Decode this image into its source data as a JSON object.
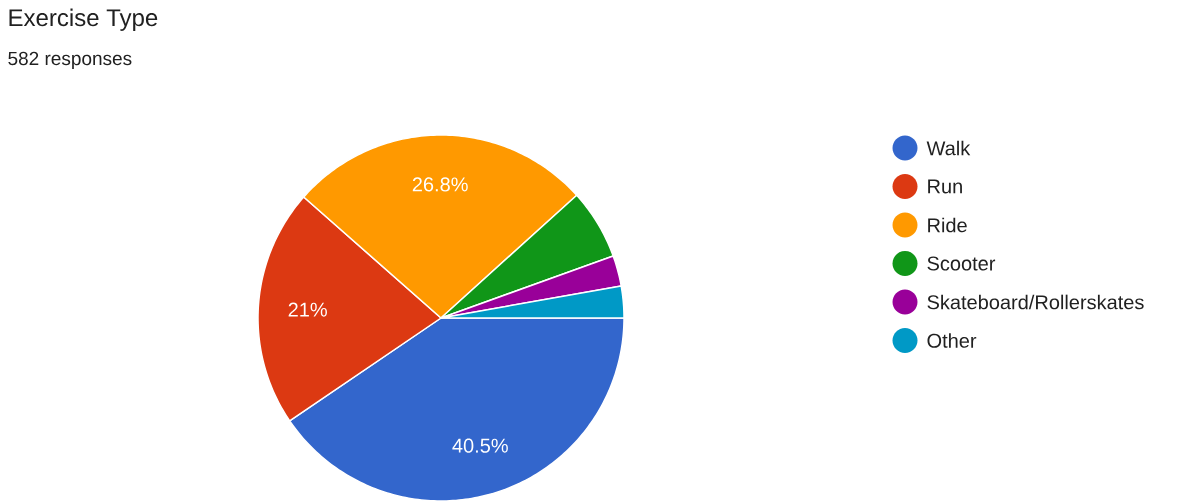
{
  "chart_data": {
    "type": "pie",
    "title": "Exercise Type",
    "subtitle": "582 responses",
    "categories": [
      "Walk",
      "Run",
      "Ride",
      "Scooter",
      "Skateboard/Rollerskates",
      "Other"
    ],
    "values": [
      40.5,
      21,
      26.8,
      6.2,
      2.7,
      2.8
    ],
    "colors": [
      "#3366cc",
      "#dc3912",
      "#ff9900",
      "#109618",
      "#990099",
      "#0099c6"
    ],
    "value_labels": [
      "40.5%",
      "21%",
      "26.8%",
      null,
      null,
      null
    ],
    "legend": "right"
  }
}
